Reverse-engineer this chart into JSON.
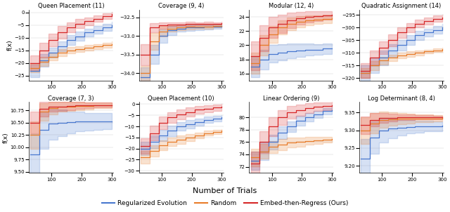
{
  "subplots": [
    {
      "title": "Queen Placement (11)",
      "ylim": [
        -27,
        1
      ],
      "yticks": [
        0,
        -5,
        -10,
        -15,
        -20,
        -25
      ],
      "lines": {
        "blue": {
          "mean": [
            -23,
            -19,
            -16,
            -13.5,
            -11,
            -9.5,
            -8,
            -7,
            -6,
            -5
          ],
          "std": [
            2.5,
            2.5,
            2.0,
            2.0,
            2.0,
            1.8,
            1.6,
            1.5,
            1.4,
            1.3
          ]
        },
        "orange": {
          "mean": [
            -22,
            -19.5,
            -17.5,
            -16,
            -15,
            -14.5,
            -14,
            -13.5,
            -13,
            -12.5
          ],
          "std": [
            1.8,
            1.8,
            1.6,
            1.4,
            1.3,
            1.2,
            1.1,
            1.0,
            0.9,
            0.9
          ]
        },
        "red": {
          "mean": [
            -20,
            -15,
            -11,
            -8,
            -6,
            -4.5,
            -3.5,
            -2.5,
            -1.5,
            -0.8
          ],
          "std": [
            3.0,
            3.0,
            2.5,
            2.5,
            2.0,
            1.8,
            1.5,
            1.3,
            1.0,
            0.9
          ]
        }
      }
    },
    {
      "title": "Coverage (9, 4)",
      "ylim": [
        -34.2,
        -32.3
      ],
      "yticks": [
        -32.5,
        -33.0,
        -33.5,
        -34.0
      ],
      "lines": {
        "blue": {
          "mean": [
            -34.1,
            -33.5,
            -33.0,
            -32.85,
            -32.8,
            -32.78,
            -32.77,
            -32.76,
            -32.75,
            -32.74
          ],
          "std": [
            0.25,
            0.25,
            0.18,
            0.12,
            0.09,
            0.08,
            0.07,
            0.06,
            0.06,
            0.05
          ]
        },
        "orange": {
          "mean": [
            -34.0,
            -33.15,
            -32.88,
            -32.8,
            -32.77,
            -32.76,
            -32.75,
            -32.75,
            -32.74,
            -32.73
          ],
          "std": [
            0.2,
            0.22,
            0.14,
            0.09,
            0.07,
            0.06,
            0.05,
            0.05,
            0.04,
            0.04
          ]
        },
        "red": {
          "mean": [
            -33.5,
            -32.78,
            -32.72,
            -32.7,
            -32.69,
            -32.68,
            -32.68,
            -32.67,
            -32.67,
            -32.66
          ],
          "std": [
            0.28,
            0.12,
            0.08,
            0.06,
            0.05,
            0.05,
            0.04,
            0.04,
            0.03,
            0.03
          ]
        }
      }
    },
    {
      "title": "Modular (12, 4)",
      "ylim": [
        15,
        25
      ],
      "yticks": [
        16,
        18,
        20,
        22,
        24
      ],
      "lines": {
        "blue": {
          "mean": [
            17.0,
            18.0,
            18.8,
            19.0,
            19.2,
            19.3,
            19.4,
            19.4,
            19.5,
            19.5
          ],
          "std": [
            1.5,
            1.4,
            1.2,
            1.1,
            1.0,
            0.9,
            0.8,
            0.7,
            0.7,
            0.6
          ]
        },
        "orange": {
          "mean": [
            17.5,
            20.0,
            21.5,
            22.5,
            23.0,
            23.3,
            23.5,
            23.6,
            23.7,
            23.8
          ],
          "std": [
            1.5,
            1.4,
            1.2,
            1.0,
            0.9,
            0.8,
            0.7,
            0.6,
            0.6,
            0.5
          ]
        },
        "red": {
          "mean": [
            18.5,
            21.0,
            22.5,
            23.0,
            23.5,
            23.8,
            24.0,
            24.1,
            24.2,
            24.3
          ],
          "std": [
            2.0,
            1.8,
            1.5,
            1.3,
            1.1,
            0.9,
            0.8,
            0.7,
            0.6,
            0.5
          ]
        }
      }
    },
    {
      "title": "Quadratic Assignment (14)",
      "ylim": [
        -321,
        -293
      ],
      "yticks": [
        -295,
        -300,
        -305,
        -310,
        -315,
        -320
      ],
      "lines": {
        "blue": {
          "mean": [
            -318,
            -315,
            -312,
            -309,
            -307,
            -305,
            -303,
            -302,
            -301,
            -300
          ],
          "std": [
            3.0,
            3.0,
            2.8,
            2.5,
            2.2,
            2.0,
            1.8,
            1.6,
            1.5,
            1.4
          ]
        },
        "orange": {
          "mean": [
            -318,
            -315,
            -313,
            -312,
            -311,
            -310.5,
            -310,
            -309.5,
            -309,
            -308.5
          ],
          "std": [
            2.0,
            1.8,
            1.5,
            1.3,
            1.1,
            1.0,
            0.9,
            0.8,
            0.7,
            0.6
          ]
        },
        "red": {
          "mean": [
            -317,
            -312,
            -308,
            -305,
            -302,
            -300,
            -298.5,
            -297.5,
            -296.5,
            -296
          ],
          "std": [
            3.0,
            2.8,
            2.5,
            2.3,
            2.0,
            1.8,
            1.5,
            1.3,
            1.2,
            1.1
          ]
        }
      }
    },
    {
      "title": "Coverage (7, 3)",
      "ylim": [
        9.48,
        10.92
      ],
      "yticks": [
        9.5,
        9.75,
        10.0,
        10.25,
        10.5,
        10.75
      ],
      "lines": {
        "blue": {
          "mean": [
            9.85,
            10.35,
            10.48,
            10.5,
            10.51,
            10.52,
            10.52,
            10.53,
            10.53,
            10.53
          ],
          "std": [
            0.42,
            0.38,
            0.32,
            0.27,
            0.22,
            0.2,
            0.18,
            0.17,
            0.16,
            0.15
          ]
        },
        "orange": {
          "mean": [
            10.25,
            10.72,
            10.8,
            10.82,
            10.83,
            10.84,
            10.84,
            10.85,
            10.85,
            10.85
          ],
          "std": [
            0.28,
            0.18,
            0.13,
            0.1,
            0.09,
            0.08,
            0.07,
            0.06,
            0.06,
            0.05
          ]
        },
        "red": {
          "mean": [
            10.5,
            10.78,
            10.82,
            10.83,
            10.84,
            10.85,
            10.85,
            10.86,
            10.86,
            10.86
          ],
          "std": [
            0.22,
            0.15,
            0.1,
            0.09,
            0.08,
            0.07,
            0.06,
            0.05,
            0.05,
            0.04
          ]
        }
      }
    },
    {
      "title": "Queen Placement (10)",
      "ylim": [
        -31,
        1
      ],
      "yticks": [
        0,
        -5,
        -10,
        -15,
        -20,
        -25,
        -30
      ],
      "lines": {
        "blue": {
          "mean": [
            -20,
            -17,
            -14,
            -12,
            -10,
            -9,
            -8,
            -7,
            -6.5,
            -6
          ],
          "std": [
            3.0,
            2.8,
            2.5,
            2.3,
            2.0,
            1.8,
            1.6,
            1.4,
            1.3,
            1.2
          ]
        },
        "orange": {
          "mean": [
            -24,
            -21,
            -18.5,
            -17,
            -16,
            -15,
            -14,
            -13,
            -12.5,
            -12
          ],
          "std": [
            2.8,
            2.5,
            2.2,
            2.0,
            1.8,
            1.5,
            1.3,
            1.2,
            1.0,
            0.9
          ]
        },
        "red": {
          "mean": [
            -19,
            -13,
            -8.5,
            -6,
            -4.5,
            -3.5,
            -2.5,
            -2.0,
            -1.5,
            -1.0
          ],
          "std": [
            3.5,
            3.2,
            2.8,
            2.5,
            2.2,
            2.0,
            1.8,
            1.6,
            1.4,
            1.3
          ]
        }
      }
    },
    {
      "title": "Linear Ordering (9)",
      "ylim": [
        71,
        82.5
      ],
      "yticks": [
        72,
        74,
        76,
        78,
        80
      ],
      "lines": {
        "blue": {
          "mean": [
            73.0,
            74.5,
            76.0,
            77.5,
            78.5,
            79.5,
            80.0,
            80.5,
            81.0,
            81.2
          ],
          "std": [
            1.5,
            1.4,
            1.2,
            1.0,
            0.9,
            0.8,
            0.7,
            0.6,
            0.5,
            0.5
          ]
        },
        "orange": {
          "mean": [
            73.5,
            74.5,
            75.2,
            75.6,
            75.9,
            76.0,
            76.2,
            76.3,
            76.4,
            76.5
          ],
          "std": [
            1.4,
            1.2,
            1.0,
            0.9,
            0.8,
            0.7,
            0.6,
            0.6,
            0.5,
            0.4
          ]
        },
        "red": {
          "mean": [
            72.5,
            76.0,
            78.5,
            80.0,
            80.8,
            81.2,
            81.5,
            81.7,
            81.8,
            82.0
          ],
          "std": [
            2.0,
            1.8,
            1.5,
            1.2,
            1.0,
            0.9,
            0.8,
            0.7,
            0.6,
            0.5
          ]
        }
      }
    },
    {
      "title": "Log Determinant (8, 4)",
      "ylim": [
        9.18,
        9.38
      ],
      "yticks": [
        9.2,
        9.25,
        9.3,
        9.35
      ],
      "lines": {
        "blue": {
          "mean": [
            9.22,
            9.28,
            9.3,
            9.305,
            9.308,
            9.31,
            9.311,
            9.312,
            9.312,
            9.313
          ],
          "std": [
            0.055,
            0.045,
            0.035,
            0.028,
            0.022,
            0.019,
            0.017,
            0.015,
            0.014,
            0.013
          ]
        },
        "orange": {
          "mean": [
            9.3,
            9.32,
            9.33,
            9.332,
            9.333,
            9.333,
            9.334,
            9.334,
            9.334,
            9.335
          ],
          "std": [
            0.038,
            0.028,
            0.022,
            0.018,
            0.015,
            0.013,
            0.011,
            0.01,
            0.009,
            0.008
          ]
        },
        "red": {
          "mean": [
            9.315,
            9.33,
            9.335,
            9.336,
            9.337,
            9.337,
            9.337,
            9.337,
            9.337,
            9.337
          ],
          "std": [
            0.025,
            0.018,
            0.013,
            0.01,
            0.008,
            0.007,
            0.006,
            0.006,
            0.005,
            0.005
          ]
        }
      }
    }
  ],
  "x_points": [
    30,
    60,
    90,
    120,
    150,
    180,
    210,
    240,
    270,
    300
  ],
  "colors": {
    "blue": "#4878CF",
    "orange": "#E87C2A",
    "red": "#D62728"
  },
  "alpha_fill": 0.22,
  "xlabel": "Number of Trials",
  "ylabel": "f(x)",
  "legend_labels": [
    "Regularized Evolution",
    "Random",
    "Embed-then-Regress (Ours)"
  ],
  "legend_colors": [
    "#4878CF",
    "#E87C2A",
    "#D62728"
  ],
  "figsize": [
    6.4,
    3.02
  ],
  "dpi": 100
}
